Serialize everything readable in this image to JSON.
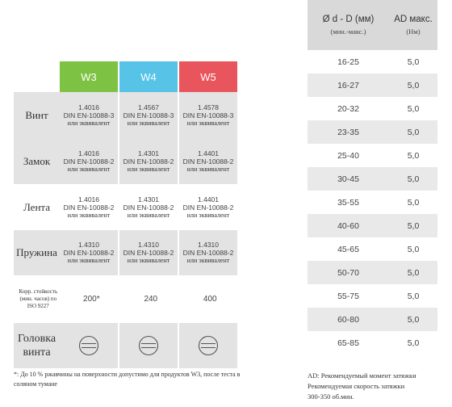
{
  "columns": [
    "W3",
    "W4",
    "W5"
  ],
  "colors": {
    "w3": "#7dc242",
    "w4": "#57c3e6",
    "w5": "#e8555c",
    "row_gray": "#e3e3e4"
  },
  "rows": {
    "vint": {
      "label": "Винт",
      "cells": [
        {
          "grade": "1.4016",
          "std": "DIN EN-10088-3",
          "eq": "или эквивалент"
        },
        {
          "grade": "1.4567",
          "std": "DIN EN-10088-3",
          "eq": "или эквивалент"
        },
        {
          "grade": "1.4578",
          "std": "DIN EN-10088-3",
          "eq": "или эквивалент"
        }
      ]
    },
    "zamok": {
      "label": "Замок",
      "cells": [
        {
          "grade": "1.4016",
          "std": "DIN EN-10088-2",
          "eq": "или эквивалент"
        },
        {
          "grade": "1.4301",
          "std": "DIN EN-10088-2",
          "eq": "или эквивалент"
        },
        {
          "grade": "1.4401",
          "std": "DIN EN-10088-2",
          "eq": "или эквивалент"
        }
      ]
    },
    "lenta": {
      "label": "Лента",
      "cells": [
        {
          "grade": "1.4016",
          "std": "DIN EN-10088-2",
          "eq": "или эквивалент"
        },
        {
          "grade": "1.4301",
          "std": "DIN EN-10088-2",
          "eq": "или эквивалент"
        },
        {
          "grade": "1.4401",
          "std": "DIN EN-10088-2",
          "eq": "или эквивалент"
        }
      ]
    },
    "pruzhina": {
      "label": "Пружина",
      "cells": [
        {
          "grade": "1.4310",
          "std": "DIN EN-10088-2",
          "eq": "или эквивалент"
        },
        {
          "grade": "1.4310",
          "std": "DIN EN-10088-2",
          "eq": "или эквивалент"
        },
        {
          "grade": "1.4310",
          "std": "DIN EN-10088-2",
          "eq": "или эквивалент"
        }
      ]
    },
    "korr": {
      "label": "Корр. стойкость (мин. часов) по ISO 9227",
      "values": [
        "200*",
        "240",
        "400"
      ]
    },
    "head": {
      "label": "Головка винта",
      "icons": [
        "slotted-screw-head-icon",
        "slotted-screw-head-icon",
        "slotted-screw-head-icon"
      ]
    }
  },
  "footnote": "*: До 10 % ржавчины на поверхности допустимо для продуктов W3, после теста в соляном тумане",
  "right_table": {
    "header": {
      "col1": "Ø d - D (мм)",
      "col1_sub": "(мин.-макс.)",
      "col2": "AD макс.",
      "col2_sub": "(Нм)"
    },
    "rows": [
      {
        "range": "16-25",
        "ad": "5,0"
      },
      {
        "range": "16-27",
        "ad": "5,0"
      },
      {
        "range": "20-32",
        "ad": "5,0"
      },
      {
        "range": "23-35",
        "ad": "5,0"
      },
      {
        "range": "25-40",
        "ad": "5,0"
      },
      {
        "range": "30-45",
        "ad": "5,0"
      },
      {
        "range": "35-55",
        "ad": "5,0"
      },
      {
        "range": "40-60",
        "ad": "5,0"
      },
      {
        "range": "45-65",
        "ad": "5,0"
      },
      {
        "range": "50-70",
        "ad": "5,0"
      },
      {
        "range": "55-75",
        "ad": "5,0"
      },
      {
        "range": "60-80",
        "ad": "5,0"
      },
      {
        "range": "65-85",
        "ad": "5,0"
      }
    ],
    "note_lines": [
      "AD: Рекомендуемый момент затяжки",
      "Рекомендуемая скорость затяжки",
      "300-350 об.мин."
    ]
  }
}
